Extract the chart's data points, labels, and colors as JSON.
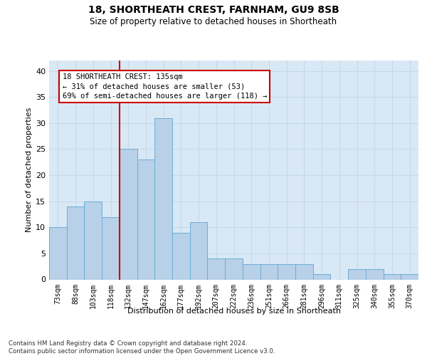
{
  "title1": "18, SHORTHEATH CREST, FARNHAM, GU9 8SB",
  "title2": "Size of property relative to detached houses in Shortheath",
  "xlabel": "Distribution of detached houses by size in Shortheath",
  "ylabel": "Number of detached properties",
  "categories": [
    "73sqm",
    "88sqm",
    "103sqm",
    "118sqm",
    "132sqm",
    "147sqm",
    "162sqm",
    "177sqm",
    "192sqm",
    "207sqm",
    "222sqm",
    "236sqm",
    "251sqm",
    "266sqm",
    "281sqm",
    "296sqm",
    "311sqm",
    "325sqm",
    "340sqm",
    "355sqm",
    "370sqm"
  ],
  "values": [
    10,
    14,
    15,
    12,
    25,
    23,
    31,
    9,
    11,
    4,
    4,
    3,
    3,
    3,
    3,
    1,
    0,
    2,
    2,
    1,
    1
  ],
  "bar_color": "#b8d0e8",
  "bar_edge_color": "#6baed6",
  "grid_color": "#c5d8ee",
  "background_color": "#d9e8f5",
  "vline_color": "#cc0000",
  "vline_pos": 3.5,
  "annotation_text": "18 SHORTHEATH CREST: 135sqm\n← 31% of detached houses are smaller (53)\n69% of semi-detached houses are larger (118) →",
  "annotation_box_facecolor": "#ffffff",
  "annotation_box_edgecolor": "#cc0000",
  "footnote": "Contains HM Land Registry data © Crown copyright and database right 2024.\nContains public sector information licensed under the Open Government Licence v3.0.",
  "ylim": [
    0,
    42
  ],
  "yticks": [
    0,
    5,
    10,
    15,
    20,
    25,
    30,
    35,
    40
  ]
}
